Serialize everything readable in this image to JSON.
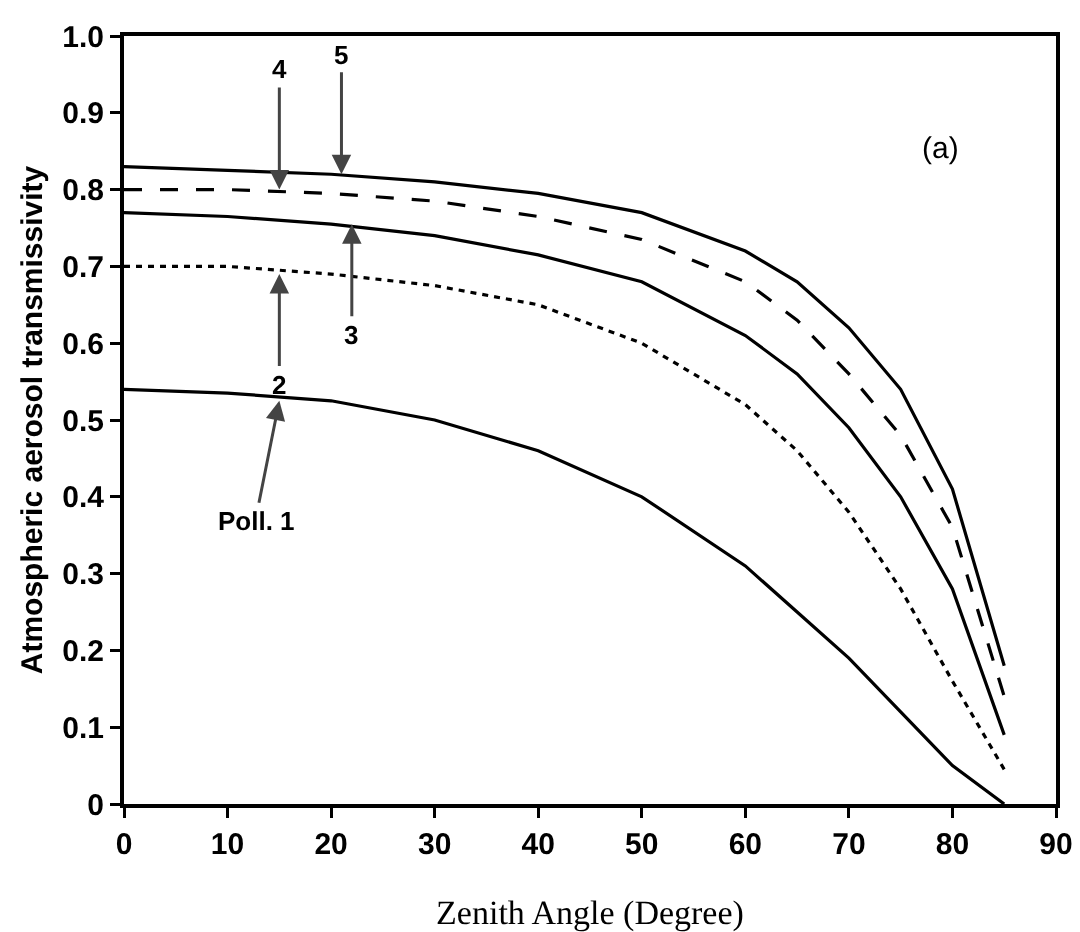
{
  "chart_data": {
    "type": "line",
    "xlabel": "Zenith Angle (Degree)",
    "ylabel": "Atmospheric aerosol transmissivity",
    "x": [
      0,
      10,
      20,
      30,
      40,
      50,
      60,
      65,
      70,
      75,
      80,
      85
    ],
    "series": [
      {
        "color": "#000000",
        "line_style": "solid",
        "values": [
          0.54,
          0.535,
          0.525,
          0.5,
          0.46,
          0.4,
          0.31,
          0.25,
          0.19,
          0.12,
          0.05,
          0.0
        ]
      },
      {
        "color": "#000000",
        "line_style": "dotted",
        "values": [
          0.7,
          0.7,
          0.69,
          0.675,
          0.65,
          0.6,
          0.52,
          0.46,
          0.38,
          0.28,
          0.16,
          0.045
        ]
      },
      {
        "color": "#000000",
        "line_style": "solid",
        "values": [
          0.77,
          0.765,
          0.755,
          0.74,
          0.715,
          0.68,
          0.61,
          0.56,
          0.49,
          0.4,
          0.28,
          0.09
        ]
      },
      {
        "color": "#000000",
        "line_style": "dashed",
        "values": [
          0.8,
          0.8,
          0.795,
          0.785,
          0.765,
          0.735,
          0.68,
          0.63,
          0.56,
          0.48,
          0.36,
          0.14
        ]
      },
      {
        "color": "#000000",
        "line_style": "solid",
        "values": [
          0.83,
          0.825,
          0.82,
          0.81,
          0.795,
          0.77,
          0.72,
          0.68,
          0.62,
          0.54,
          0.41,
          0.18
        ]
      }
    ],
    "xlim": [
      0,
      90
    ],
    "xticks": [
      0,
      10,
      20,
      30,
      40,
      50,
      60,
      70,
      80,
      90
    ],
    "ylim": [
      0,
      1
    ],
    "yticks": [
      0,
      0.1,
      0.2,
      0.3,
      0.4,
      0.5,
      0.6,
      0.7,
      0.8,
      0.9,
      {
        "value": 1,
        "label": "1.0"
      }
    ],
    "annotations": [
      {
        "text": "4",
        "x": 15,
        "y": 0.8
      },
      {
        "text": "5",
        "x": 21,
        "y": 0.82
      },
      {
        "text": "2",
        "x": 15,
        "y": 0.69
      },
      {
        "text": "3",
        "x": 22,
        "y": 0.755
      },
      {
        "text": "Poll. 1",
        "x": 15,
        "y": 0.525
      },
      "(a)"
    ],
    "grid": false,
    "marker": "none"
  }
}
